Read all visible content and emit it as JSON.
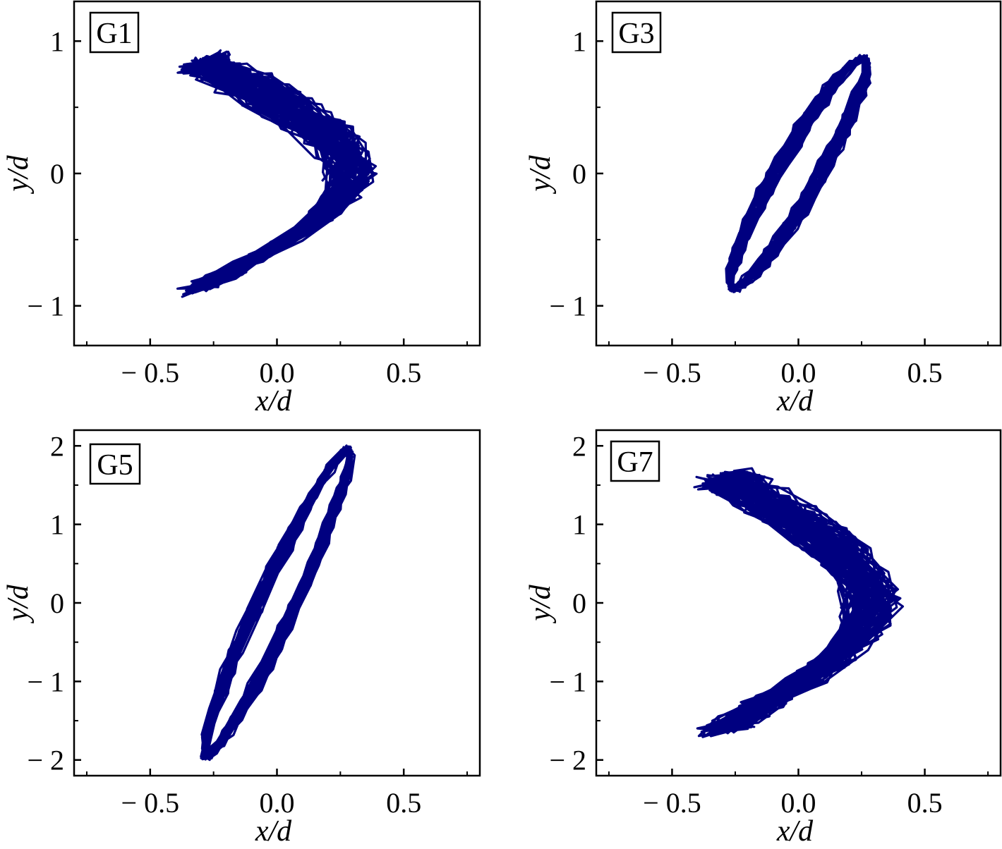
{
  "colors": {
    "trajectory": "#000080",
    "axes": "#000000",
    "background": "#ffffff"
  },
  "chart_data": [
    {
      "type": "line",
      "title": "G1",
      "xlabel": "x/d",
      "ylabel": "y/d",
      "xlim": [
        -0.8,
        0.8
      ],
      "ylim": [
        -1.3,
        1.3
      ],
      "xticks": [
        -0.5,
        0.0,
        0.5
      ],
      "xtick_labels": [
        "− 0.5",
        "0.0",
        "0.5"
      ],
      "yticks": [
        -1,
        0,
        1
      ],
      "ytick_labels": [
        "− 1",
        "0",
        "1"
      ],
      "grid": false,
      "series": [
        {
          "pattern": "figure-eight",
          "x_amplitude": 0.52,
          "x_center": 0.0,
          "y_amplitude": 0.85,
          "band_width": 0.2,
          "crossing_x": 0.45
        }
      ]
    },
    {
      "type": "line",
      "title": "G3",
      "xlabel": "x/d",
      "ylabel": "y/d",
      "xlim": [
        -0.8,
        0.8
      ],
      "ylim": [
        -1.3,
        1.3
      ],
      "xticks": [
        -0.5,
        0.0,
        0.5
      ],
      "xtick_labels": [
        "− 0.5",
        "0.0",
        "0.5"
      ],
      "yticks": [
        -1,
        0,
        1
      ],
      "ytick_labels": [
        "− 1",
        "0",
        "1"
      ],
      "grid": false,
      "series": [
        {
          "pattern": "inclined-ellipse",
          "x_amplitude": 0.26,
          "y_amplitude": 0.87,
          "minor_width": 0.08,
          "band_width": 0.06
        }
      ]
    },
    {
      "type": "line",
      "title": "G5",
      "xlabel": "x/d",
      "ylabel": "y/d",
      "xlim": [
        -0.8,
        0.8
      ],
      "ylim": [
        -2.2,
        2.2
      ],
      "xticks": [
        -0.5,
        0.0,
        0.5
      ],
      "xtick_labels": [
        "− 0.5",
        "0.0",
        "0.5"
      ],
      "yticks": [
        -2,
        -1,
        0,
        1,
        2
      ],
      "ytick_labels": [
        "− 2",
        "− 1",
        "0",
        "1",
        "2"
      ],
      "grid": false,
      "series": [
        {
          "pattern": "inclined-ellipse",
          "x_amplitude": 0.28,
          "y_amplitude": 1.95,
          "minor_width": 0.07,
          "band_width": 0.05
        }
      ]
    },
    {
      "type": "line",
      "title": "G7",
      "xlabel": "x/d",
      "ylabel": "y/d",
      "xlim": [
        -0.8,
        0.8
      ],
      "ylim": [
        -2.2,
        2.2
      ],
      "xticks": [
        -0.5,
        0.0,
        0.5
      ],
      "xtick_labels": [
        "− 0.5",
        "0.0",
        "0.5"
      ],
      "yticks": [
        -2,
        -1,
        0,
        1,
        2
      ],
      "ytick_labels": [
        "− 2",
        "− 1",
        "0",
        "1",
        "2"
      ],
      "grid": false,
      "series": [
        {
          "pattern": "figure-eight",
          "x_amplitude": 0.53,
          "x_center": 0.0,
          "y_amplitude": 1.6,
          "band_width": 0.22,
          "crossing_x": 0.46
        }
      ]
    }
  ]
}
